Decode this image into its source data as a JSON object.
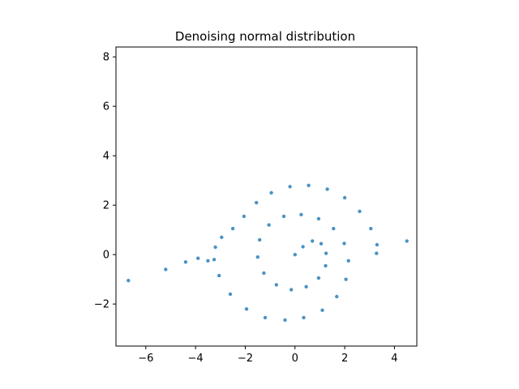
{
  "chart_data": {
    "type": "scatter",
    "title": "Denoising normal distribution",
    "xlabel": "",
    "ylabel": "",
    "xlim": [
      -7.2,
      4.9
    ],
    "ylim": [
      -3.7,
      8.4
    ],
    "xticks": [
      -6,
      -4,
      -2,
      0,
      2,
      4
    ],
    "yticks": [
      -2,
      0,
      2,
      4,
      6,
      8
    ],
    "xtick_labels": [
      "−6",
      "−4",
      "−2",
      "0",
      "2",
      "4"
    ],
    "ytick_labels": [
      "−2",
      "0",
      "2",
      "4",
      "6",
      "8"
    ],
    "grid": false,
    "point_color": "#1f77b4",
    "series": [
      {
        "values": [
          [
            0.0,
            0.0
          ],
          [
            0.32,
            0.32
          ],
          [
            0.7,
            0.55
          ],
          [
            1.05,
            0.44
          ],
          [
            1.25,
            0.05
          ],
          [
            1.23,
            -0.45
          ],
          [
            0.95,
            -0.95
          ],
          [
            0.45,
            -1.3
          ],
          [
            -0.15,
            -1.42
          ],
          [
            -0.75,
            -1.22
          ],
          [
            -1.25,
            -0.75
          ],
          [
            -1.5,
            -0.1
          ],
          [
            -1.42,
            0.6
          ],
          [
            -1.05,
            1.2
          ],
          [
            -0.45,
            1.55
          ],
          [
            0.25,
            1.62
          ],
          [
            0.95,
            1.45
          ],
          [
            1.55,
            1.05
          ],
          [
            1.98,
            0.45
          ],
          [
            2.15,
            -0.25
          ],
          [
            2.05,
            -1.0
          ],
          [
            1.68,
            -1.7
          ],
          [
            1.1,
            -2.25
          ],
          [
            0.35,
            -2.55
          ],
          [
            -0.4,
            -2.65
          ],
          [
            -1.2,
            -2.55
          ],
          [
            -1.95,
            -2.2
          ],
          [
            -2.6,
            -1.6
          ],
          [
            -3.05,
            -0.85
          ],
          [
            -3.25,
            -0.2
          ],
          [
            -3.2,
            0.3
          ],
          [
            -2.95,
            0.7
          ],
          [
            -2.5,
            1.05
          ],
          [
            -2.05,
            1.55
          ],
          [
            -1.55,
            2.1
          ],
          [
            -0.95,
            2.5
          ],
          [
            -0.2,
            2.75
          ],
          [
            0.55,
            2.8
          ],
          [
            1.3,
            2.65
          ],
          [
            2.0,
            2.3
          ],
          [
            2.6,
            1.75
          ],
          [
            3.05,
            1.05
          ],
          [
            3.3,
            0.4
          ],
          [
            3.28,
            0.05
          ],
          [
            -3.5,
            -0.25
          ],
          [
            -3.9,
            -0.15
          ],
          [
            -4.4,
            -0.3
          ],
          [
            -5.2,
            -0.6
          ],
          [
            -6.7,
            -1.05
          ],
          [
            4.5,
            0.55
          ]
        ]
      }
    ]
  }
}
